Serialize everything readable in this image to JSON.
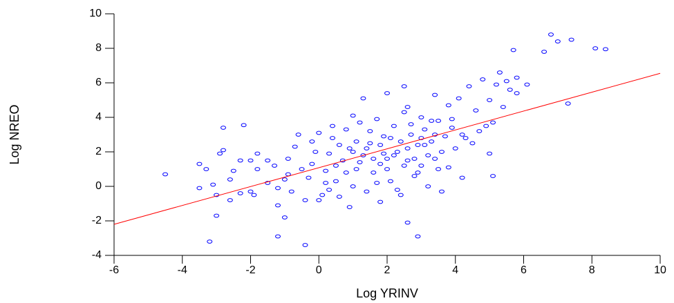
{
  "chart_data": {
    "type": "scatter",
    "x_label": "Log YRINV",
    "y_label": "Log NREO",
    "xlim": [
      -6,
      10
    ],
    "xticks": [
      -6,
      -4,
      -2,
      0,
      2,
      4,
      6,
      8,
      10
    ],
    "ylim": [
      -4,
      10
    ],
    "yticks": [
      -4,
      -2,
      0,
      2,
      4,
      6,
      8,
      10
    ],
    "series": [
      {
        "mode": "markers",
        "color": "#0000ff",
        "x": [
          -4.5,
          -3.2,
          -3.5,
          -3.5,
          -3.3,
          -3.0,
          -3.0,
          -2.9,
          -2.8,
          -2.8,
          -2.6,
          -2.6,
          -2.3,
          -2.2,
          -2.3,
          -2.0,
          -1.9,
          -1.8,
          -1.8,
          -1.5,
          -1.2,
          -1.2,
          -1.2,
          -1.0,
          -0.9,
          -0.9,
          -0.7,
          -0.6,
          -0.4,
          -0.4,
          -0.3,
          -0.2,
          -0.1,
          0.0,
          0.1,
          0.2,
          0.3,
          0.4,
          0.5,
          0.6,
          0.7,
          0.8,
          0.9,
          1.0,
          1.1,
          1.2,
          1.3,
          1.3,
          1.4,
          1.5,
          1.6,
          1.7,
          1.8,
          1.8,
          1.9,
          2.0,
          2.0,
          2.1,
          2.2,
          2.3,
          2.4,
          2.5,
          2.5,
          2.6,
          2.6,
          2.7,
          2.8,
          2.9,
          2.9,
          3.0,
          3.0,
          3.1,
          3.2,
          3.3,
          3.4,
          3.4,
          3.5,
          3.6,
          3.7,
          3.8,
          3.8,
          3.9,
          4.0,
          4.1,
          4.2,
          4.2,
          4.4,
          4.5,
          4.6,
          4.8,
          4.9,
          5.0,
          5.0,
          5.1,
          5.1,
          5.2,
          5.3,
          5.4,
          5.5,
          5.6,
          5.7,
          5.8,
          5.8,
          6.1,
          6.6,
          6.8,
          7.0,
          7.3,
          7.4,
          8.1,
          8.4,
          0.5,
          0.8,
          1.0,
          1.2,
          1.4,
          1.6,
          1.8,
          2.0,
          2.2,
          2.4,
          2.6,
          2.8,
          3.0,
          3.2,
          3.4,
          3.6,
          1.1,
          1.5,
          2.1,
          2.7,
          3.3,
          0.2,
          -0.5,
          -1.0,
          -1.5,
          -0.8,
          0.0,
          0.3,
          1.7,
          2.3,
          2.9,
          3.5,
          -1.3,
          -0.2,
          0.6,
          1.9,
          2.5,
          3.1,
          4.3,
          4.7,
          -2.5,
          -3.1,
          -2.0,
          0.9,
          0.4,
          1.0,
          2.6,
          3.9
        ],
        "values": [
          0.7,
          -3.2,
          -0.1,
          1.3,
          1.0,
          -1.7,
          -0.5,
          1.9,
          3.4,
          2.1,
          0.4,
          -0.8,
          -0.4,
          3.55,
          1.5,
          1.5,
          -0.5,
          1.0,
          1.9,
          1.5,
          -0.1,
          -1.1,
          -2.9,
          -1.8,
          0.7,
          1.6,
          2.3,
          3.0,
          -3.4,
          -0.8,
          0.5,
          1.3,
          2.0,
          3.1,
          -0.5,
          0.9,
          1.9,
          2.8,
          0.3,
          -0.6,
          1.5,
          3.3,
          2.2,
          0.0,
          1.0,
          3.7,
          5.1,
          1.8,
          -0.3,
          2.5,
          0.8,
          3.9,
          1.3,
          -0.9,
          2.9,
          5.4,
          1.6,
          0.3,
          3.5,
          2.0,
          -0.5,
          5.8,
          4.3,
          1.5,
          -2.1,
          3.0,
          0.6,
          2.4,
          -2.9,
          4.0,
          1.2,
          3.3,
          0.0,
          2.6,
          5.3,
          1.6,
          3.8,
          -0.3,
          2.9,
          4.7,
          1.1,
          3.4,
          2.2,
          5.1,
          0.5,
          3.0,
          5.8,
          2.5,
          4.4,
          6.2,
          3.5,
          1.9,
          5.0,
          0.6,
          3.7,
          5.9,
          6.6,
          4.6,
          6.1,
          5.6,
          7.9,
          6.3,
          5.4,
          5.9,
          7.8,
          8.8,
          8.4,
          4.8,
          8.5,
          8.0,
          7.95,
          1.2,
          0.8,
          2.0,
          1.4,
          2.2,
          1.6,
          2.4,
          1.0,
          1.8,
          2.6,
          2.2,
          1.6,
          2.8,
          1.8,
          3.0,
          2.0,
          2.6,
          3.2,
          2.8,
          3.6,
          3.8,
          0.2,
          1.0,
          0.4,
          0.2,
          -0.3,
          -0.8,
          -0.2,
          0.2,
          -0.2,
          0.8,
          1.0,
          1.2,
          2.6,
          2.4,
          1.9,
          1.2,
          2.4,
          2.8,
          3.2,
          0.9,
          0.1,
          -0.3,
          -1.2,
          3.5,
          4.1,
          4.6,
          3.9
        ]
      },
      {
        "mode": "line",
        "color": "#ff0000",
        "x": [
          -6,
          10
        ],
        "values": [
          -2.2,
          6.55
        ]
      }
    ]
  }
}
